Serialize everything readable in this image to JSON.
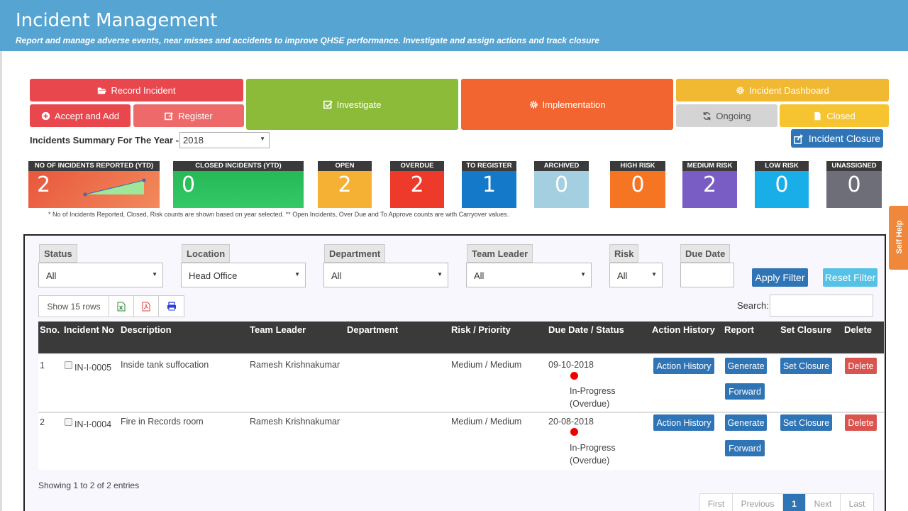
{
  "header": {
    "title": "Incident Management",
    "subtitle": "Report and manage adverse events, near misses and accidents to improve QHSE performance. Investigate and assign actions and track closure"
  },
  "actions": {
    "record_incident": "Record Incident",
    "accept_and_add": "Accept and Add",
    "register": "Register",
    "investigate": "Investigate",
    "implementation": "Implementation",
    "incident_dashboard": "Incident Dashboard",
    "ongoing": "Ongoing",
    "closed": "Closed"
  },
  "summary": {
    "label": "Incidents Summary For The Year -",
    "year": "2018"
  },
  "incident_closure_button": "Incident Closure",
  "cards": [
    {
      "label": "NO OF INCIDENTS REPORTED (YTD)",
      "value": "2",
      "color": "#e8543a"
    },
    {
      "label": "CLOSED INCIDENTS (YTD)",
      "value": "0",
      "color": "#2dbf5c"
    },
    {
      "label": "OPEN",
      "value": "2",
      "color": "#f5b133"
    },
    {
      "label": "OVERDUE",
      "value": "2",
      "color": "#ee3a2a"
    },
    {
      "label": "TO REGISTER",
      "value": "1",
      "color": "#1479c8"
    },
    {
      "label": "ARCHIVED",
      "value": "0",
      "color": "#a4cfe0"
    },
    {
      "label": "HIGH RISK",
      "value": "0",
      "color": "#f57522"
    },
    {
      "label": "MEDIUM RISK",
      "value": "2",
      "color": "#7a5cc5"
    },
    {
      "label": "LOW RISK",
      "value": "0",
      "color": "#1aaee8"
    },
    {
      "label": "UNASSIGNED",
      "value": "0",
      "color": "#6e6e78"
    }
  ],
  "note": "* No of Incidents Reported, Closed, Risk counts are shown based on year selected. ** Open Incidents, Over Due and To Approve counts are with Carryover values.",
  "self_help": "Self Help",
  "filters": {
    "status": {
      "label": "Status",
      "value": "All"
    },
    "location": {
      "label": "Location",
      "value": "Head Office"
    },
    "department": {
      "label": "Department",
      "value": "All"
    },
    "team_leader": {
      "label": "Team Leader",
      "value": "All"
    },
    "risk": {
      "label": "Risk",
      "value": "All"
    },
    "due_date": {
      "label": "Due Date",
      "value": ""
    },
    "apply": "Apply Filter",
    "reset": "Reset Filter"
  },
  "toolbar": {
    "show_rows": "Show 15 rows",
    "search_label": "Search:"
  },
  "table": {
    "columns": [
      "Sno.",
      "Incident No",
      "Description",
      "Team Leader",
      "Department",
      "Risk / Priority",
      "Due Date / Status",
      "Action History",
      "Report",
      "Set Closure",
      "Delete"
    ],
    "rows": [
      {
        "sno": "1",
        "incident_no": "IN-I-0005",
        "description": "Inside tank suffocation",
        "team_leader": "Ramesh Krishnakumar",
        "department": "",
        "risk": "Medium / Medium",
        "due_date": "09-10-2018",
        "status": "In-Progress",
        "status_note": "(Overdue)",
        "action_history": "Action History",
        "generate": "Generate",
        "forward": "Forward",
        "set_closure": "Set Closure",
        "delete": "Delete"
      },
      {
        "sno": "2",
        "incident_no": "IN-I-0004",
        "description": "Fire in Records room",
        "team_leader": "Ramesh Krishnakumar",
        "department": "",
        "risk": "Medium / Medium",
        "due_date": "20-08-2018",
        "status": "In-Progress",
        "status_note": "(Overdue)",
        "action_history": "Action History",
        "generate": "Generate",
        "forward": "Forward",
        "set_closure": "Set Closure",
        "delete": "Delete"
      }
    ]
  },
  "footer": {
    "showing": "Showing 1 to 2 of 2 entries",
    "pager": {
      "first": "First",
      "previous": "Previous",
      "current": "1",
      "next": "Next",
      "last": "Last"
    }
  }
}
